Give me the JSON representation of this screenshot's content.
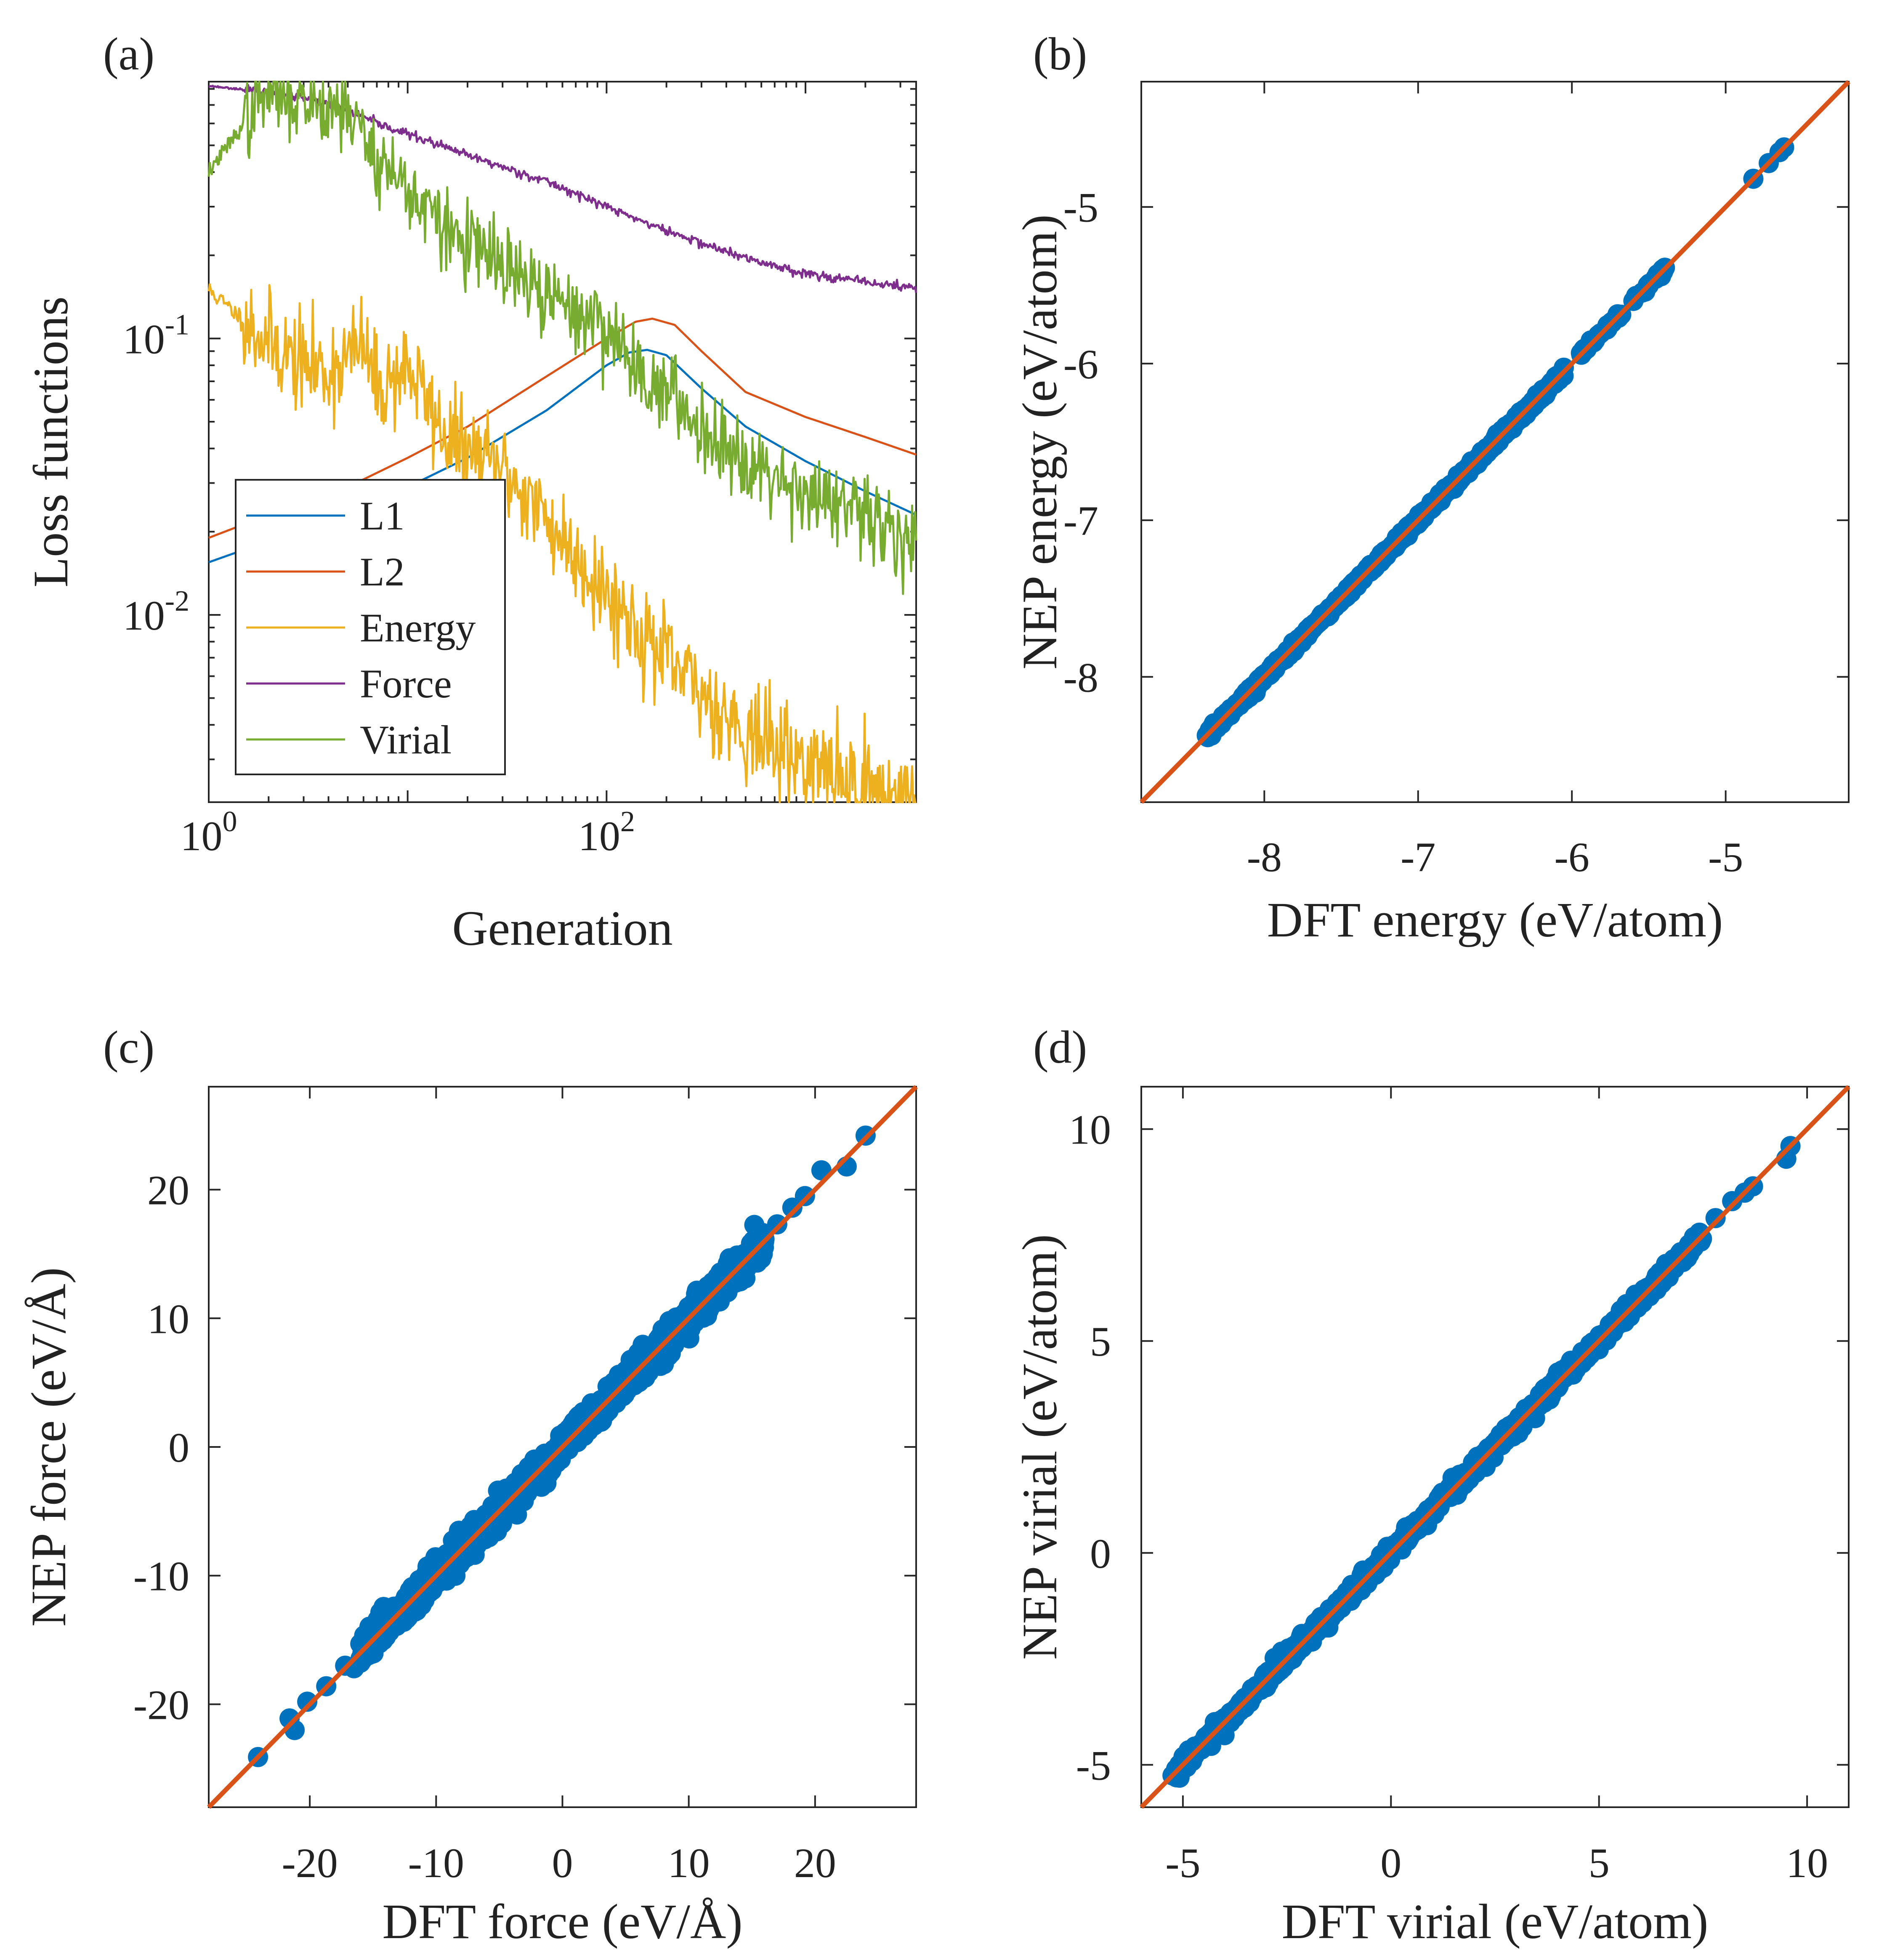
{
  "colors": {
    "L1": "#0072BD",
    "L2": "#D95319",
    "Energy": "#EDB120",
    "Force": "#7E2F8E",
    "Virial": "#77AC30",
    "scatter": "#0072BD",
    "identity_line": "#D95319",
    "axis": "#262626"
  },
  "chart_data": [
    {
      "panel": "(a)",
      "type": "line",
      "xscale": "log",
      "yscale": "log",
      "xlabel": "Generation",
      "ylabel": "Loss functions",
      "xlim": [
        1,
        3600
      ],
      "ylim": [
        0.0021,
        0.85
      ],
      "xticks": [
        {
          "v": 1,
          "base": "10",
          "exp": "0"
        },
        {
          "v": 100,
          "base": "10",
          "exp": "2"
        }
      ],
      "yticks": [
        {
          "v": 0.01,
          "base": "10",
          "exp": "-2"
        },
        {
          "v": 0.1,
          "base": "10",
          "exp": "-1"
        }
      ],
      "legend": {
        "position": "bottom-left",
        "entries": [
          "L1",
          "L2",
          "Energy",
          "Force",
          "Virial"
        ]
      },
      "series": [
        {
          "name": "L1",
          "color_key": "L1",
          "points": [
            [
              1,
              0.0155
            ],
            [
              2,
              0.0185
            ],
            [
              5,
              0.023
            ],
            [
              10,
              0.029
            ],
            [
              20,
              0.037
            ],
            [
              50,
              0.055
            ],
            [
              100,
              0.08
            ],
            [
              130,
              0.089
            ],
            [
              160,
              0.091
            ],
            [
              200,
              0.087
            ],
            [
              300,
              0.066
            ],
            [
              500,
              0.048
            ],
            [
              1000,
              0.036
            ],
            [
              2000,
              0.028
            ],
            [
              3600,
              0.023
            ]
          ]
        },
        {
          "name": "L2",
          "color_key": "L2",
          "points": [
            [
              1,
              0.019
            ],
            [
              2,
              0.023
            ],
            [
              5,
              0.029
            ],
            [
              10,
              0.037
            ],
            [
              20,
              0.048
            ],
            [
              50,
              0.073
            ],
            [
              100,
              0.1
            ],
            [
              140,
              0.115
            ],
            [
              170,
              0.118
            ],
            [
              220,
              0.112
            ],
            [
              300,
              0.09
            ],
            [
              500,
              0.064
            ],
            [
              1000,
              0.052
            ],
            [
              2000,
              0.044
            ],
            [
              3600,
              0.038
            ]
          ]
        },
        {
          "name": "Energy",
          "color_key": "Energy",
          "noise": 0.09,
          "seed": 11,
          "points": [
            [
              1,
              0.15
            ],
            [
              2,
              0.097
            ],
            [
              3,
              0.08
            ],
            [
              4,
              0.076
            ],
            [
              6,
              0.095
            ],
            [
              7,
              0.065
            ],
            [
              10,
              0.08
            ],
            [
              15,
              0.046
            ],
            [
              20,
              0.038
            ],
            [
              30,
              0.034
            ],
            [
              50,
              0.022
            ],
            [
              100,
              0.012
            ],
            [
              200,
              0.0068
            ],
            [
              300,
              0.0052
            ],
            [
              500,
              0.0038
            ],
            [
              1000,
              0.0029
            ],
            [
              2000,
              0.0024
            ],
            [
              3600,
              0.0021
            ]
          ]
        },
        {
          "name": "Force",
          "color_key": "Force",
          "noise": 0.008,
          "seed": 23,
          "points": [
            [
              1,
              0.82
            ],
            [
              2,
              0.78
            ],
            [
              3,
              0.74
            ],
            [
              5,
              0.67
            ],
            [
              7,
              0.6
            ],
            [
              10,
              0.55
            ],
            [
              20,
              0.46
            ],
            [
              50,
              0.37
            ],
            [
              100,
              0.3
            ],
            [
              200,
              0.245
            ],
            [
              500,
              0.195
            ],
            [
              1000,
              0.172
            ],
            [
              2000,
              0.16
            ],
            [
              3600,
              0.152
            ]
          ]
        },
        {
          "name": "Virial",
          "color_key": "Virial",
          "noise": 0.075,
          "seed": 37,
          "points": [
            [
              1,
              0.4
            ],
            [
              1.7,
              0.68
            ],
            [
              2.2,
              0.82
            ],
            [
              3,
              0.72
            ],
            [
              4,
              0.71
            ],
            [
              5,
              0.68
            ],
            [
              7,
              0.45
            ],
            [
              10,
              0.35
            ],
            [
              15,
              0.25
            ],
            [
              20,
              0.22
            ],
            [
              30,
              0.18
            ],
            [
              50,
              0.14
            ],
            [
              100,
              0.11
            ],
            [
              150,
              0.075
            ],
            [
              200,
              0.063
            ],
            [
              300,
              0.048
            ],
            [
              500,
              0.037
            ],
            [
              1000,
              0.028
            ],
            [
              2000,
              0.022
            ],
            [
              3600,
              0.019
            ]
          ]
        }
      ]
    },
    {
      "panel": "(b)",
      "type": "scatter",
      "xlabel": "DFT energy (eV/atom)",
      "ylabel": "NEP energy (eV/atom)",
      "xlim": [
        -8.8,
        -4.2
      ],
      "ylim": [
        -8.8,
        -4.2
      ],
      "xticks": [
        -8,
        -7,
        -6,
        -5
      ],
      "yticks": [
        -8,
        -7,
        -6,
        -5
      ],
      "tick_labels_x": [
        "-8",
        "-7",
        "-6",
        "-5"
      ],
      "tick_labels_y": [
        "-8",
        "-7",
        "-6",
        "-5"
      ],
      "identity_line": true,
      "scatter_ranges": [
        [
          -8.38,
          -6.05,
          0.012,
          900,
          5
        ],
        [
          -5.95,
          -5.38,
          0.012,
          40,
          6
        ]
      ],
      "scatter_points": [
        [
          -5.92,
          -5.92
        ],
        [
          -5.85,
          -5.85
        ],
        [
          -5.6,
          -5.6
        ],
        [
          -5.5,
          -5.5
        ],
        [
          -5.42,
          -5.42
        ],
        [
          -4.82,
          -4.82
        ],
        [
          -4.72,
          -4.72
        ],
        [
          -4.62,
          -4.62
        ],
        [
          -4.65,
          -4.65
        ]
      ]
    },
    {
      "panel": "(c)",
      "type": "scatter",
      "xlabel": "DFT force (eV/Å)",
      "ylabel": "NEP force (eV/Å)",
      "xlim": [
        -28,
        28
      ],
      "ylim": [
        -28,
        28
      ],
      "xticks": [
        -20,
        -10,
        0,
        10,
        20
      ],
      "yticks": [
        -20,
        -10,
        0,
        10,
        20
      ],
      "tick_labels_x": [
        "-20",
        "-10",
        "0",
        "10",
        "20"
      ],
      "tick_labels_y": [
        "-20",
        "-10",
        "0",
        "10",
        "20"
      ],
      "identity_line": true,
      "scatter_ranges": [
        [
          -16,
          16,
          0.55,
          1300,
          7
        ]
      ],
      "scatter_points": [
        [
          -24.1,
          -24.1
        ],
        [
          -21.6,
          -21.1
        ],
        [
          -21.2,
          -22.0
        ],
        [
          -20.2,
          -19.8
        ],
        [
          -18.7,
          -18.6
        ],
        [
          -17.2,
          -17.0
        ],
        [
          -16.5,
          -17.2
        ],
        [
          -16.0,
          -15.3
        ],
        [
          17.0,
          17.3
        ],
        [
          18.2,
          18.6
        ],
        [
          19.2,
          19.5
        ],
        [
          20.5,
          21.5
        ],
        [
          22.5,
          21.8
        ],
        [
          24.0,
          24.2
        ]
      ]
    },
    {
      "panel": "(d)",
      "type": "scatter",
      "xlabel": "DFT virial (eV/atom)",
      "ylabel": "NEP virial (eV/atom)",
      "xlim": [
        -6,
        11
      ],
      "ylim": [
        -6,
        11
      ],
      "xticks": [
        -5,
        0,
        5,
        10
      ],
      "yticks": [
        -5,
        0,
        5,
        10
      ],
      "tick_labels_x": [
        "-5",
        "0",
        "5",
        "10"
      ],
      "tick_labels_y": [
        "-5",
        "0",
        "5",
        "10"
      ],
      "identity_line": true,
      "scatter_ranges": [
        [
          -5.2,
          7.5,
          0.09,
          1000,
          9
        ]
      ],
      "scatter_points": [
        [
          -5.25,
          -5.25
        ],
        [
          -5.0,
          -5.05
        ],
        [
          -4.0,
          -4.3
        ],
        [
          8.2,
          8.3
        ],
        [
          8.5,
          8.5
        ],
        [
          8.7,
          8.65
        ],
        [
          9.5,
          9.3
        ],
        [
          9.6,
          9.6
        ],
        [
          7.8,
          7.9
        ]
      ]
    }
  ]
}
